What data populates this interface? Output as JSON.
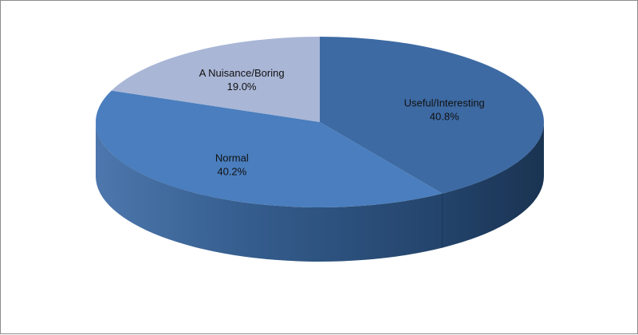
{
  "chart_data": {
    "type": "pie",
    "style": "3d",
    "title": "",
    "slices": [
      {
        "label": "Useful/Interesting",
        "value": 40.8,
        "value_label": "40.8%",
        "color": "#3d6aa3"
      },
      {
        "label": "Normal",
        "value": 40.2,
        "value_label": "40.2%",
        "color": "#4a7ebe"
      },
      {
        "label": "A Nuisance/Boring",
        "value": 19.0,
        "value_label": "19.0%",
        "color": "#a9b6d6"
      }
    ],
    "legend": "none"
  }
}
